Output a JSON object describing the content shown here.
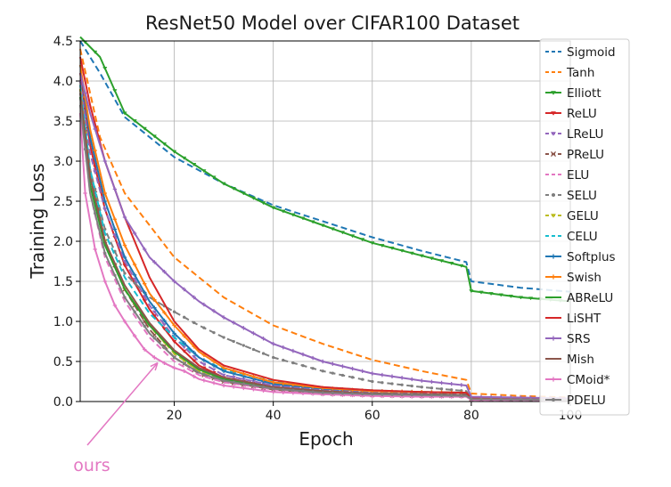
{
  "chart_data": {
    "type": "line",
    "title": "ResNet50 Model over CIFAR100 Dataset",
    "xlabel": "Epoch",
    "ylabel": "Training Loss",
    "xlim": [
      1,
      100
    ],
    "ylim": [
      0.0,
      4.5
    ],
    "xticks": [
      "20",
      "40",
      "60",
      "80",
      "100"
    ],
    "yticks": [
      "0.0",
      "0.5",
      "1.0",
      "1.5",
      "2.0",
      "2.5",
      "3.0",
      "3.5",
      "4.0",
      "4.5"
    ],
    "grid": true,
    "legend_position": "right",
    "annotation": {
      "text": "ours",
      "target_x": 17,
      "target_y": 0.55,
      "color": "#e377c2"
    },
    "series": [
      {
        "name": "Sigmoid",
        "color": "#1f77b4",
        "dash": true,
        "marker": "none",
        "points": [
          [
            1,
            4.5
          ],
          [
            5,
            4.1
          ],
          [
            10,
            3.55
          ],
          [
            20,
            3.05
          ],
          [
            30,
            2.72
          ],
          [
            40,
            2.45
          ],
          [
            50,
            2.25
          ],
          [
            60,
            2.05
          ],
          [
            70,
            1.88
          ],
          [
            79,
            1.74
          ],
          [
            80,
            1.5
          ],
          [
            90,
            1.42
          ],
          [
            100,
            1.37
          ]
        ]
      },
      {
        "name": "Tanh",
        "color": "#ff7f0e",
        "dash": true,
        "marker": "none",
        "points": [
          [
            1,
            4.4
          ],
          [
            5,
            3.3
          ],
          [
            10,
            2.6
          ],
          [
            20,
            1.8
          ],
          [
            30,
            1.3
          ],
          [
            40,
            0.95
          ],
          [
            50,
            0.72
          ],
          [
            60,
            0.52
          ],
          [
            70,
            0.38
          ],
          [
            79,
            0.27
          ],
          [
            80,
            0.1
          ],
          [
            90,
            0.07
          ],
          [
            100,
            0.05
          ]
        ]
      },
      {
        "name": "Elliott",
        "color": "#2ca02c",
        "dash": false,
        "marker": "tri",
        "points": [
          [
            1,
            4.55
          ],
          [
            5,
            4.3
          ],
          [
            10,
            3.6
          ],
          [
            20,
            3.12
          ],
          [
            30,
            2.72
          ],
          [
            40,
            2.42
          ],
          [
            50,
            2.2
          ],
          [
            60,
            1.98
          ],
          [
            70,
            1.82
          ],
          [
            79,
            1.68
          ],
          [
            80,
            1.38
          ],
          [
            90,
            1.3
          ],
          [
            100,
            1.25
          ]
        ]
      },
      {
        "name": "ReLU",
        "color": "#d62728",
        "dash": false,
        "marker": "tri",
        "points": [
          [
            1,
            4.1
          ],
          [
            3,
            3.2
          ],
          [
            6,
            2.4
          ],
          [
            10,
            1.7
          ],
          [
            15,
            1.15
          ],
          [
            20,
            0.75
          ],
          [
            25,
            0.45
          ],
          [
            30,
            0.3
          ],
          [
            40,
            0.18
          ],
          [
            50,
            0.13
          ],
          [
            60,
            0.1
          ],
          [
            70,
            0.09
          ],
          [
            79,
            0.08
          ],
          [
            80,
            0.03
          ],
          [
            100,
            0.02
          ]
        ]
      },
      {
        "name": "LReLU",
        "color": "#9467bd",
        "dash": true,
        "marker": "tri",
        "points": [
          [
            1,
            4.0
          ],
          [
            3,
            3.1
          ],
          [
            6,
            2.4
          ],
          [
            10,
            1.75
          ],
          [
            15,
            1.2
          ],
          [
            20,
            0.8
          ],
          [
            25,
            0.5
          ],
          [
            30,
            0.33
          ],
          [
            40,
            0.2
          ],
          [
            50,
            0.14
          ],
          [
            60,
            0.11
          ],
          [
            70,
            0.1
          ],
          [
            79,
            0.09
          ],
          [
            80,
            0.03
          ],
          [
            100,
            0.02
          ]
        ]
      },
      {
        "name": "PReLU",
        "color": "#8c564b",
        "dash": true,
        "marker": "x",
        "points": [
          [
            1,
            3.9
          ],
          [
            3,
            2.9
          ],
          [
            6,
            2.0
          ],
          [
            10,
            1.4
          ],
          [
            15,
            0.9
          ],
          [
            20,
            0.55
          ],
          [
            25,
            0.35
          ],
          [
            30,
            0.25
          ],
          [
            40,
            0.15
          ],
          [
            50,
            0.1
          ],
          [
            60,
            0.08
          ],
          [
            70,
            0.07
          ],
          [
            79,
            0.07
          ],
          [
            80,
            0.03
          ],
          [
            100,
            0.02
          ]
        ]
      },
      {
        "name": "ELU",
        "color": "#e377c2",
        "dash": true,
        "marker": "none",
        "points": [
          [
            1,
            3.8
          ],
          [
            3,
            2.6
          ],
          [
            6,
            1.8
          ],
          [
            10,
            1.25
          ],
          [
            15,
            0.8
          ],
          [
            20,
            0.5
          ],
          [
            25,
            0.33
          ],
          [
            30,
            0.24
          ],
          [
            40,
            0.15
          ],
          [
            50,
            0.1
          ],
          [
            60,
            0.08
          ],
          [
            70,
            0.07
          ],
          [
            79,
            0.07
          ],
          [
            80,
            0.02
          ],
          [
            100,
            0.02
          ]
        ]
      },
      {
        "name": "SELU",
        "color": "#7f7f7f",
        "dash": true,
        "marker": "dot",
        "points": [
          [
            1,
            3.9
          ],
          [
            3,
            2.9
          ],
          [
            6,
            2.15
          ],
          [
            10,
            1.6
          ],
          [
            15,
            1.3
          ],
          [
            20,
            1.12
          ],
          [
            25,
            0.95
          ],
          [
            30,
            0.8
          ],
          [
            40,
            0.55
          ],
          [
            50,
            0.38
          ],
          [
            60,
            0.25
          ],
          [
            70,
            0.18
          ],
          [
            79,
            0.13
          ],
          [
            80,
            0.05
          ],
          [
            100,
            0.03
          ]
        ]
      },
      {
        "name": "GELU",
        "color": "#bcbd22",
        "dash": true,
        "marker": "tri",
        "points": [
          [
            1,
            3.9
          ],
          [
            3,
            2.8
          ],
          [
            6,
            2.0
          ],
          [
            10,
            1.4
          ],
          [
            15,
            0.95
          ],
          [
            20,
            0.6
          ],
          [
            25,
            0.38
          ],
          [
            30,
            0.27
          ],
          [
            40,
            0.16
          ],
          [
            50,
            0.11
          ],
          [
            60,
            0.09
          ],
          [
            70,
            0.08
          ],
          [
            79,
            0.07
          ],
          [
            80,
            0.03
          ],
          [
            100,
            0.02
          ]
        ]
      },
      {
        "name": "CELU",
        "color": "#17becf",
        "dash": true,
        "marker": "none",
        "points": [
          [
            1,
            3.95
          ],
          [
            3,
            2.9
          ],
          [
            6,
            2.1
          ],
          [
            10,
            1.55
          ],
          [
            15,
            1.1
          ],
          [
            20,
            0.8
          ],
          [
            25,
            0.55
          ],
          [
            30,
            0.4
          ],
          [
            40,
            0.25
          ],
          [
            50,
            0.18
          ],
          [
            60,
            0.14
          ],
          [
            70,
            0.12
          ],
          [
            79,
            0.11
          ],
          [
            80,
            0.04
          ],
          [
            100,
            0.03
          ]
        ]
      },
      {
        "name": "Softplus",
        "color": "#1f77b4",
        "dash": false,
        "marker": "plus",
        "points": [
          [
            1,
            4.2
          ],
          [
            3,
            3.3
          ],
          [
            6,
            2.5
          ],
          [
            10,
            1.8
          ],
          [
            15,
            1.25
          ],
          [
            20,
            0.85
          ],
          [
            25,
            0.55
          ],
          [
            30,
            0.38
          ],
          [
            40,
            0.22
          ],
          [
            50,
            0.16
          ],
          [
            60,
            0.13
          ],
          [
            70,
            0.12
          ],
          [
            79,
            0.11
          ],
          [
            80,
            0.04
          ],
          [
            100,
            0.03
          ]
        ]
      },
      {
        "name": "Swish",
        "color": "#ff7f0e",
        "dash": false,
        "marker": "plus",
        "points": [
          [
            1,
            4.2
          ],
          [
            3,
            3.4
          ],
          [
            6,
            2.6
          ],
          [
            10,
            1.95
          ],
          [
            15,
            1.35
          ],
          [
            20,
            0.95
          ],
          [
            25,
            0.62
          ],
          [
            30,
            0.42
          ],
          [
            40,
            0.24
          ],
          [
            50,
            0.17
          ],
          [
            60,
            0.13
          ],
          [
            70,
            0.12
          ],
          [
            79,
            0.11
          ],
          [
            80,
            0.04
          ],
          [
            100,
            0.03
          ]
        ]
      },
      {
        "name": "ABReLU",
        "color": "#2ca02c",
        "dash": false,
        "marker": "none",
        "points": [
          [
            1,
            3.8
          ],
          [
            3,
            2.7
          ],
          [
            6,
            1.95
          ],
          [
            10,
            1.4
          ],
          [
            15,
            0.95
          ],
          [
            20,
            0.62
          ],
          [
            25,
            0.4
          ],
          [
            30,
            0.28
          ],
          [
            40,
            0.17
          ],
          [
            50,
            0.12
          ],
          [
            60,
            0.1
          ],
          [
            70,
            0.09
          ],
          [
            79,
            0.08
          ],
          [
            80,
            0.03
          ],
          [
            100,
            0.02
          ]
        ]
      },
      {
        "name": "LiSHT",
        "color": "#d62728",
        "dash": false,
        "marker": "none",
        "points": [
          [
            1,
            4.3
          ],
          [
            3,
            3.7
          ],
          [
            6,
            3.0
          ],
          [
            10,
            2.3
          ],
          [
            15,
            1.55
          ],
          [
            20,
            1.0
          ],
          [
            25,
            0.65
          ],
          [
            30,
            0.45
          ],
          [
            40,
            0.27
          ],
          [
            50,
            0.18
          ],
          [
            60,
            0.14
          ],
          [
            70,
            0.12
          ],
          [
            79,
            0.11
          ],
          [
            80,
            0.04
          ],
          [
            100,
            0.03
          ]
        ]
      },
      {
        "name": "SRS",
        "color": "#9467bd",
        "dash": false,
        "marker": "plus",
        "points": [
          [
            1,
            4.1
          ],
          [
            3,
            3.6
          ],
          [
            6,
            3.0
          ],
          [
            10,
            2.3
          ],
          [
            15,
            1.8
          ],
          [
            20,
            1.5
          ],
          [
            25,
            1.25
          ],
          [
            30,
            1.05
          ],
          [
            40,
            0.72
          ],
          [
            50,
            0.5
          ],
          [
            60,
            0.35
          ],
          [
            70,
            0.26
          ],
          [
            79,
            0.2
          ],
          [
            80,
            0.06
          ],
          [
            100,
            0.04
          ]
        ]
      },
      {
        "name": "Mish",
        "color": "#8c564b",
        "dash": false,
        "marker": "none",
        "points": [
          [
            1,
            3.85
          ],
          [
            3,
            2.8
          ],
          [
            6,
            2.0
          ],
          [
            10,
            1.45
          ],
          [
            15,
            0.98
          ],
          [
            20,
            0.64
          ],
          [
            25,
            0.42
          ],
          [
            30,
            0.3
          ],
          [
            40,
            0.18
          ],
          [
            50,
            0.13
          ],
          [
            60,
            0.1
          ],
          [
            70,
            0.09
          ],
          [
            79,
            0.08
          ],
          [
            80,
            0.03
          ],
          [
            100,
            0.02
          ]
        ]
      },
      {
        "name": "CMoid*",
        "color": "#e377c2",
        "dash": false,
        "marker": "plus",
        "points": [
          [
            1,
            3.6
          ],
          [
            2,
            2.6
          ],
          [
            4,
            1.9
          ],
          [
            6,
            1.5
          ],
          [
            8,
            1.2
          ],
          [
            10,
            1.0
          ],
          [
            12,
            0.82
          ],
          [
            14,
            0.65
          ],
          [
            16,
            0.55
          ],
          [
            18,
            0.48
          ],
          [
            20,
            0.42
          ],
          [
            22,
            0.38
          ],
          [
            25,
            0.28
          ],
          [
            30,
            0.2
          ],
          [
            40,
            0.12
          ],
          [
            50,
            0.09
          ],
          [
            60,
            0.07
          ],
          [
            70,
            0.06
          ],
          [
            79,
            0.06
          ],
          [
            80,
            0.02
          ],
          [
            100,
            0.02
          ]
        ]
      },
      {
        "name": "PDELU",
        "color": "#7f7f7f",
        "dash": false,
        "marker": "dot",
        "points": [
          [
            1,
            3.7
          ],
          [
            3,
            2.6
          ],
          [
            6,
            1.85
          ],
          [
            10,
            1.3
          ],
          [
            15,
            0.85
          ],
          [
            20,
            0.55
          ],
          [
            25,
            0.36
          ],
          [
            30,
            0.26
          ],
          [
            40,
            0.16
          ],
          [
            50,
            0.11
          ],
          [
            60,
            0.09
          ],
          [
            70,
            0.08
          ],
          [
            79,
            0.07
          ],
          [
            80,
            0.03
          ],
          [
            100,
            0.02
          ]
        ]
      }
    ]
  }
}
